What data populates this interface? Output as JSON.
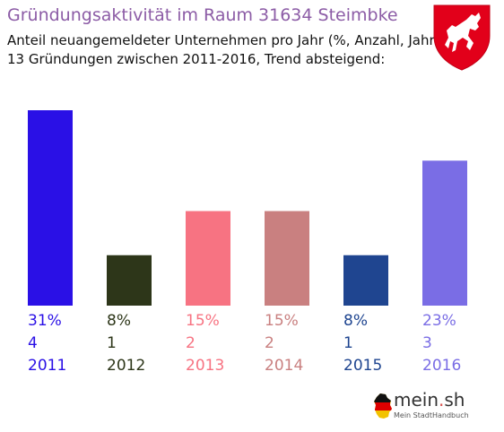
{
  "header": {
    "title": "Gründungsaktivität im Raum 31634 Steimbke",
    "subtitle_line1": "Anteil neuangemeldeter Unternehmen pro Jahr (%, Anzahl, Jahr)",
    "subtitle_line2": "13 Gründungen zwischen 2011-2016, Trend absteigend:"
  },
  "crest": {
    "icon": "lower-saxony-horse-crest-icon",
    "color": "#e2001a"
  },
  "logo": {
    "name_part1": "mein",
    "name_dot": ".",
    "name_part2": "sh",
    "tagline": "Mein StadtHandbuch",
    "icon": "germany-map-icon"
  },
  "chart_data": {
    "type": "bar",
    "title": "Gründungsaktivität im Raum 31634 Steimbke",
    "categories": [
      "2011",
      "2012",
      "2013",
      "2014",
      "2015",
      "2016"
    ],
    "values": [
      31,
      8,
      15,
      15,
      8,
      23
    ],
    "value_labels": [
      "31%",
      "8%",
      "15%",
      "15%",
      "8%",
      "23%"
    ],
    "counts": [
      "4",
      "1",
      "2",
      "2",
      "1",
      "3"
    ],
    "colors": [
      "#2a10e6",
      "#2d3619",
      "#f77382",
      "#c98080",
      "#1f4590",
      "#7a6de5"
    ],
    "ylim": [
      0,
      31
    ],
    "grid": false,
    "legend": "none"
  }
}
